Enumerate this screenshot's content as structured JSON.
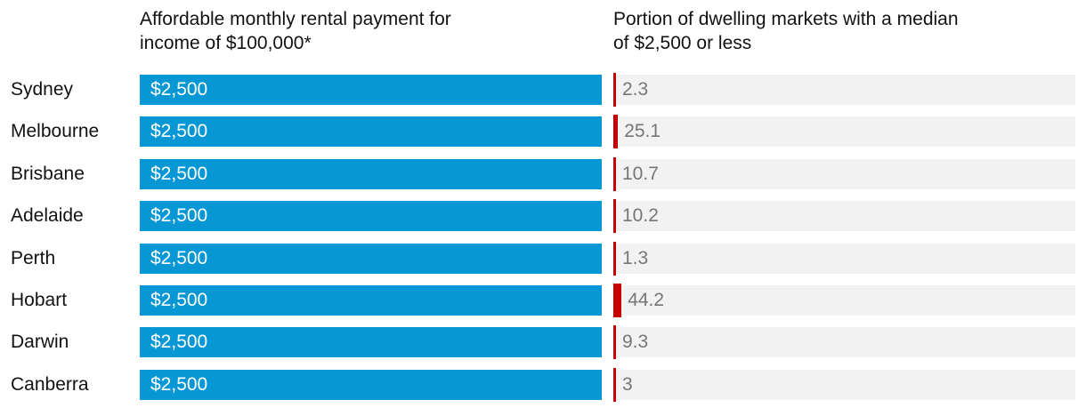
{
  "headers": {
    "left": "Affordable monthly rental payment for\nincome of $100,000*",
    "right": "Portion of dwelling markets with a median\nof $2,500 or less"
  },
  "colors": {
    "blue_bar": "#0697d4",
    "red_bar": "#c70000",
    "track_bg": "#f2f2f2",
    "header_text": "#121212",
    "label_text": "#121212",
    "value_text": "#767676",
    "bar_text": "#ffffff"
  },
  "chart_data": {
    "type": "bar",
    "orientation": "horizontal",
    "title": "",
    "categories": [
      "Sydney",
      "Melbourne",
      "Brisbane",
      "Adelaide",
      "Perth",
      "Hobart",
      "Darwin",
      "Canberra"
    ],
    "axis_max": 2500,
    "grid": false,
    "legend_position": "column-headers-top",
    "series": [
      {
        "name": "Affordable monthly rental payment for income of $100,000*",
        "values": [
          2500,
          2500,
          2500,
          2500,
          2500,
          2500,
          2500,
          2500
        ],
        "value_labels": [
          "$2,500",
          "$2,500",
          "$2,500",
          "$2,500",
          "$2,500",
          "$2,500",
          "$2,500",
          "$2,500"
        ],
        "color": "#0697d4"
      },
      {
        "name": "Portion of dwelling markets with a median of $2,500 or less",
        "values": [
          2.3,
          25.1,
          10.7,
          10.2,
          1.3,
          44.2,
          9.3,
          3
        ],
        "value_labels": [
          "2.3",
          "25.1",
          "10.7",
          "10.2",
          "1.3",
          "44.2",
          "9.3",
          "3"
        ],
        "color": "#c70000",
        "track_color": "#f2f2f2"
      }
    ]
  }
}
